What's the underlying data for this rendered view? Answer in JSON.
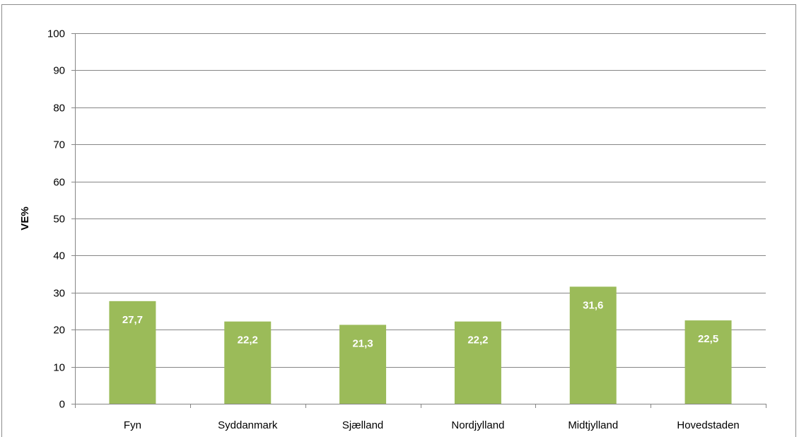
{
  "chart_data": {
    "type": "bar",
    "categories": [
      "Fyn",
      "Syddanmark",
      "Sjælland",
      "Nordjylland",
      "Midtjylland",
      "Hovedstaden"
    ],
    "values": [
      27.7,
      22.2,
      21.3,
      22.2,
      31.6,
      22.5
    ],
    "data_labels": [
      "27,7",
      "22,2",
      "21,3",
      "22,2",
      "31,6",
      "22,5"
    ],
    "ylabel": "VE%",
    "xlabel": "",
    "ylim": [
      0,
      100
    ],
    "yticks": [
      0,
      10,
      20,
      30,
      40,
      50,
      60,
      70,
      80,
      90,
      100
    ],
    "grid": true,
    "bar_color": "#9BBB59"
  }
}
